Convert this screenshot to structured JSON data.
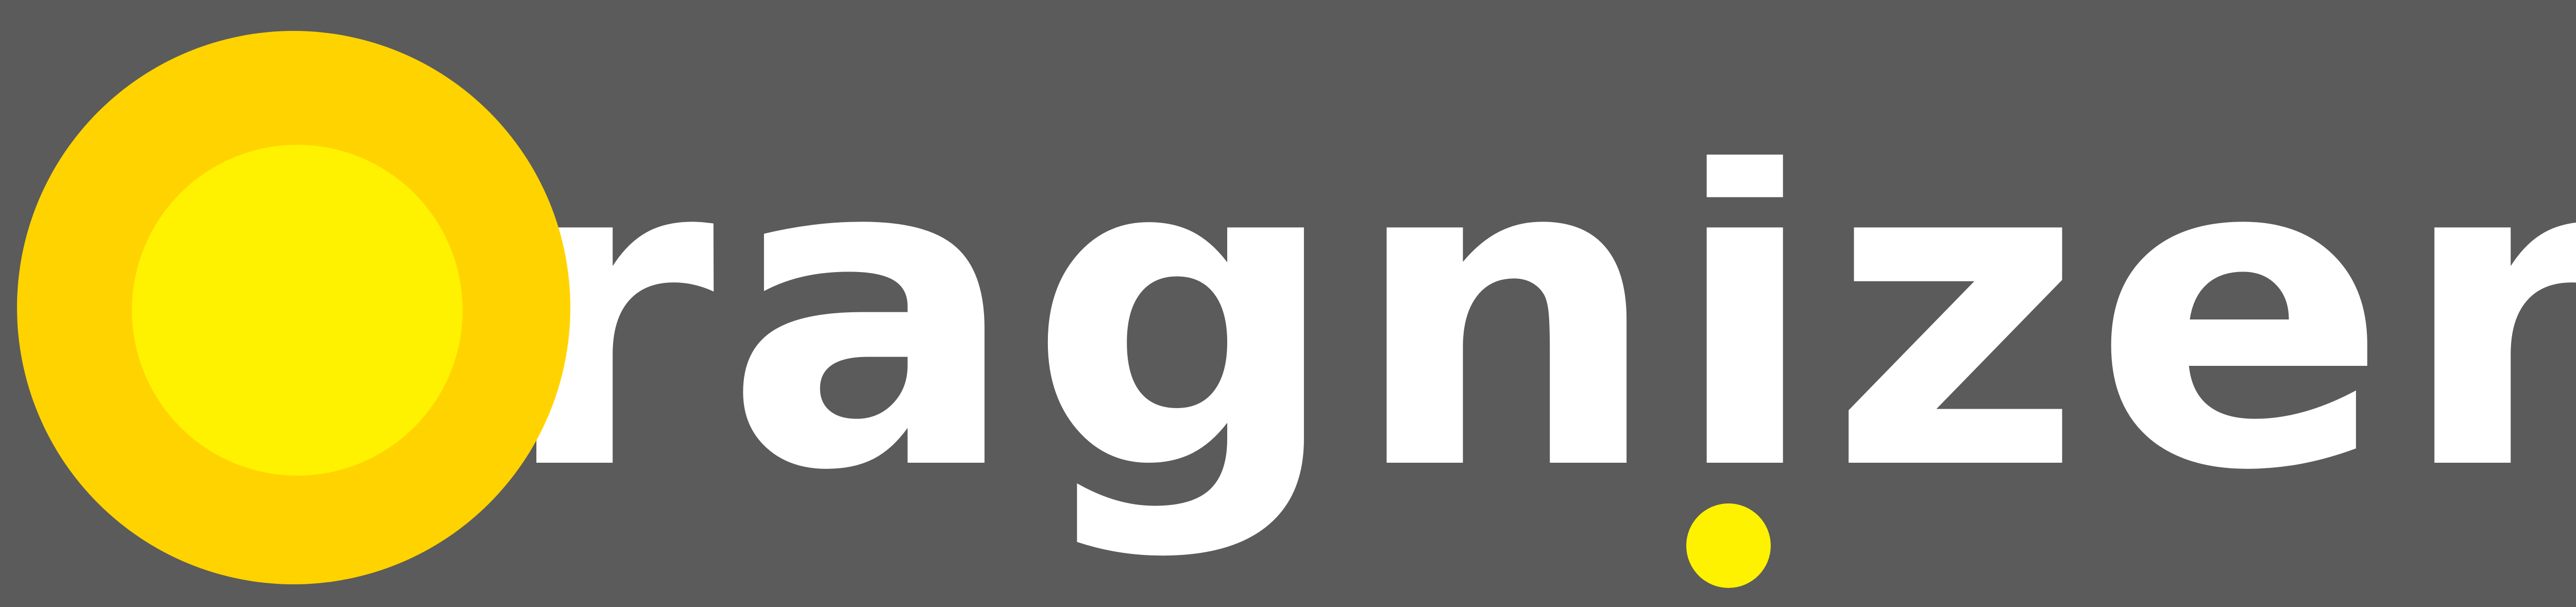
{
  "logo": {
    "wordmark": "ragnizer",
    "background_color": "#5b5b5b",
    "text_color": "#ffffff",
    "outer_ring_color": "#ffd300",
    "inner_circle_color": "#fff200",
    "dot_color": "#fff200"
  }
}
